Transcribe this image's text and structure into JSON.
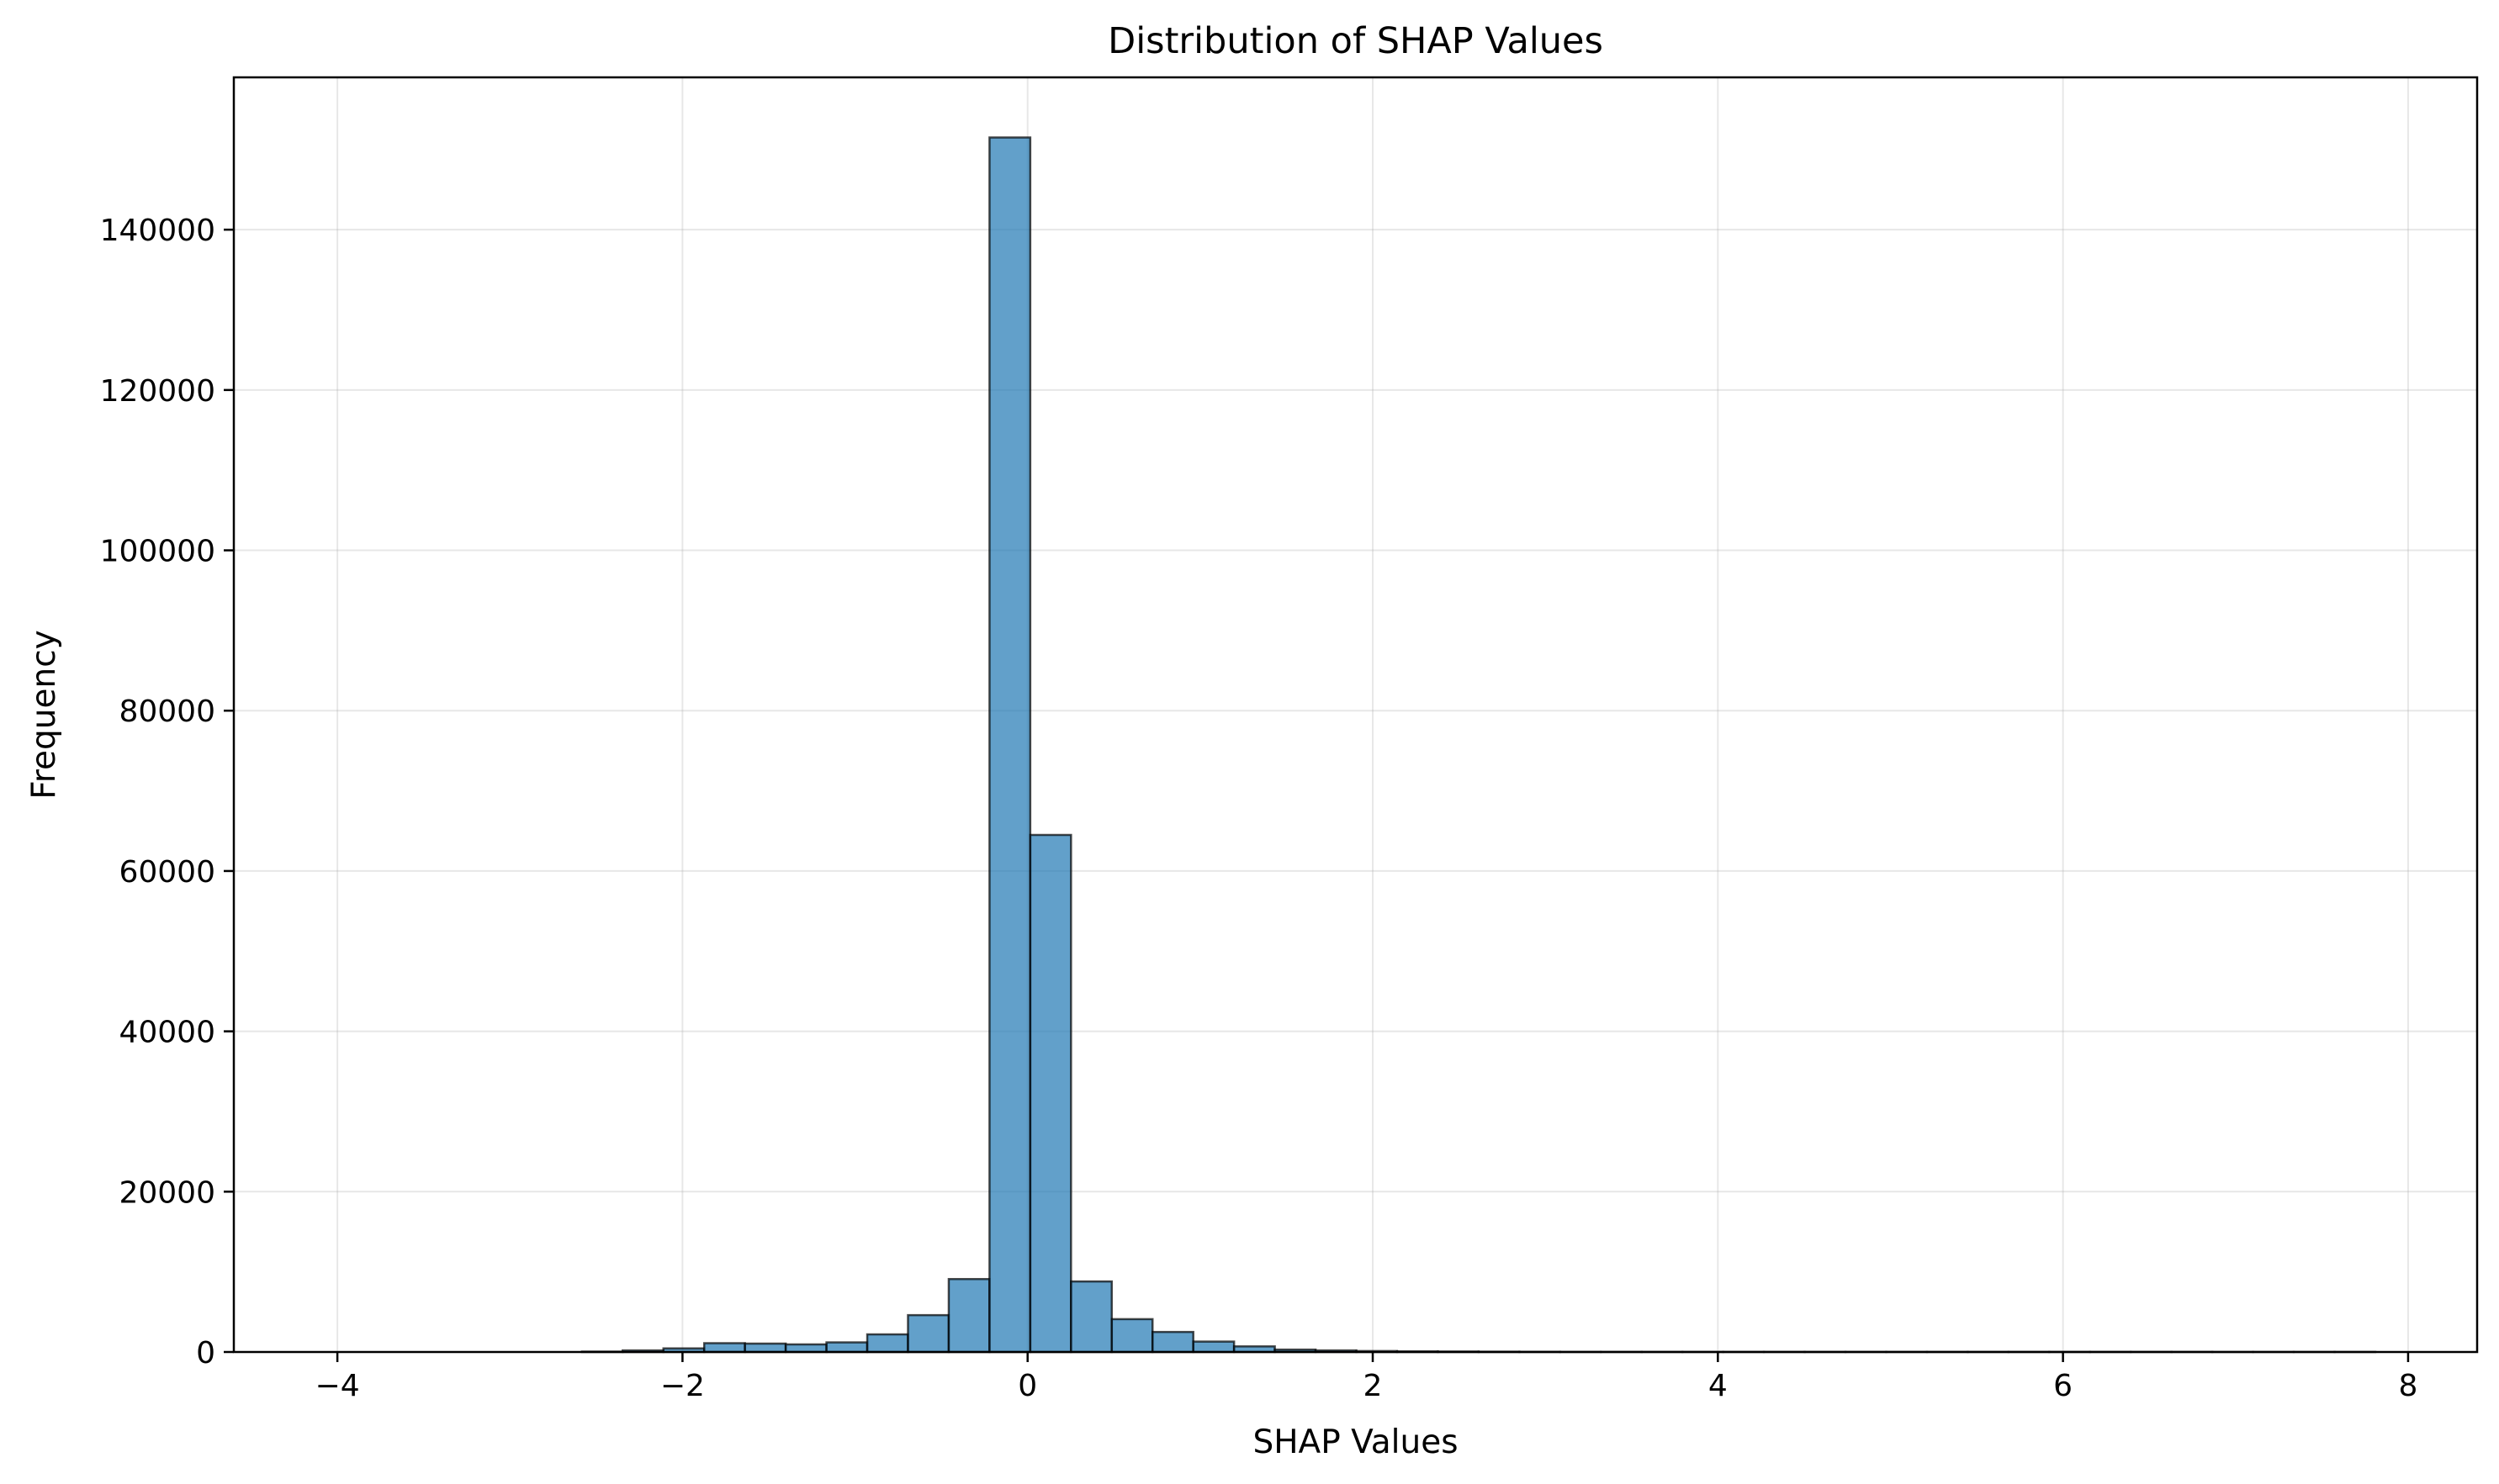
{
  "chart_data": {
    "type": "bar",
    "title": "Distribution of SHAP Values",
    "xlabel": "SHAP Values",
    "ylabel": "Frequency",
    "xlim": [
      -4.6,
      8.4
    ],
    "ylim": [
      0,
      159000
    ],
    "xticks": [
      -4,
      -2,
      0,
      2,
      4,
      6,
      8
    ],
    "xtick_labels": [
      "−4",
      "−2",
      "0",
      "2",
      "4",
      "6",
      "8"
    ],
    "yticks": [
      0,
      20000,
      40000,
      60000,
      80000,
      100000,
      120000,
      140000
    ],
    "ytick_labels": [
      "0",
      "20000",
      "40000",
      "60000",
      "80000",
      "100000",
      "120000",
      "140000"
    ],
    "grid": true,
    "bar_color": "#1f77b4",
    "bar_alpha": 0.7,
    "edge_color": "#000000",
    "bin_start": -4.0,
    "bin_width": 0.2362,
    "values": [
      0,
      0,
      0,
      0,
      0,
      0,
      50,
      200,
      450,
      1100,
      1050,
      950,
      1200,
      2200,
      4600,
      9100,
      151500,
      64500,
      8800,
      4100,
      2500,
      1300,
      700,
      300,
      200,
      120,
      80,
      60,
      40,
      30,
      20,
      20,
      20,
      20,
      20,
      20,
      20,
      20,
      20,
      20,
      20,
      20,
      20,
      20,
      20,
      20,
      10,
      10,
      10,
      10
    ]
  }
}
